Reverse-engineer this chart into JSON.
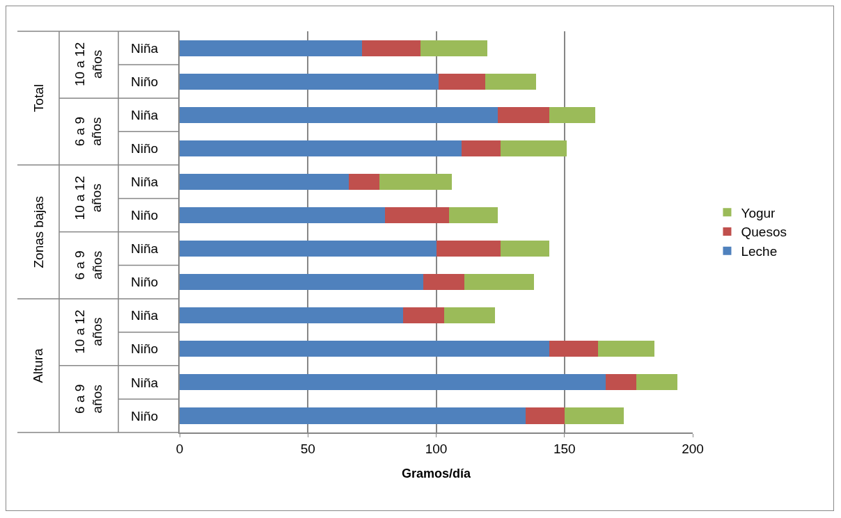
{
  "chart_data": {
    "type": "bar",
    "orientation": "horizontal",
    "stacked": true,
    "xlabel": "Gramos/día",
    "categories": [
      "Niña",
      "Niño",
      "Niña",
      "Niño",
      "Niña",
      "Niño",
      "Niña",
      "Niño",
      "Niña",
      "Niño",
      "Niña",
      "Niño"
    ],
    "annotations": [
      "10 a 12 años",
      "6 a 9 años",
      "10 a 12 años",
      "6 a 9 años",
      "10 a 12 años",
      "6 a 9 años",
      "Total",
      "Zonas bajas",
      "Altura"
    ],
    "series": [
      {
        "name": "Leche",
        "color": "#4f81bd",
        "values": [
          71,
          101,
          124,
          110,
          66,
          80,
          100,
          95,
          87,
          144,
          166,
          135
        ]
      },
      {
        "name": "Quesos",
        "color": "#c0504d",
        "values": [
          23,
          18,
          20,
          15,
          12,
          25,
          25,
          16,
          16,
          19,
          12,
          15
        ]
      },
      {
        "name": "Yogur",
        "color": "#9bbb59",
        "values": [
          26,
          20,
          18,
          26,
          28,
          19,
          19,
          27,
          20,
          22,
          16,
          23
        ]
      }
    ],
    "xlim": [
      0,
      200
    ],
    "xticks": [
      0,
      50,
      100,
      150,
      200
    ],
    "grid": "x",
    "legend": "right"
  }
}
